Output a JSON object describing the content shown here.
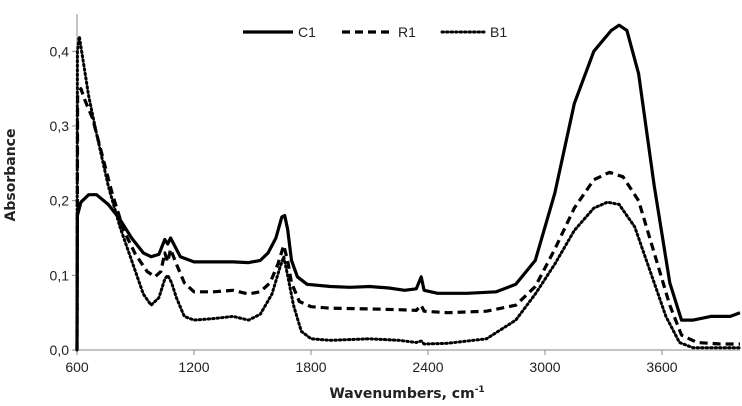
{
  "chart_data": {
    "type": "line",
    "title": "",
    "xlabel": "Wavenumbers, cm",
    "xlabel_superscript": "-1",
    "ylabel": "Absorbance",
    "xlim": [
      600,
      4000
    ],
    "ylim": [
      0,
      0.45
    ],
    "x_ticks": [
      600,
      1200,
      1800,
      2400,
      3000,
      3600
    ],
    "x_tick_labels": [
      "600",
      "1200",
      "1800",
      "2400",
      "3000",
      "3600"
    ],
    "y_ticks": [
      0,
      0.1,
      0.2,
      0.3,
      0.4
    ],
    "y_tick_labels": [
      "0,0",
      "0,1",
      "0,2",
      "0,3",
      "0,4"
    ],
    "grid": false,
    "legend_position": "top-center",
    "series": [
      {
        "name": "C1",
        "style": "solid",
        "color": "#000000",
        "points": [
          [
            600,
            0.0
          ],
          [
            602,
            0.18
          ],
          [
            620,
            0.198
          ],
          [
            660,
            0.208
          ],
          [
            700,
            0.208
          ],
          [
            760,
            0.195
          ],
          [
            820,
            0.175
          ],
          [
            880,
            0.15
          ],
          [
            940,
            0.13
          ],
          [
            980,
            0.125
          ],
          [
            1020,
            0.128
          ],
          [
            1050,
            0.148
          ],
          [
            1065,
            0.142
          ],
          [
            1080,
            0.15
          ],
          [
            1100,
            0.14
          ],
          [
            1130,
            0.125
          ],
          [
            1200,
            0.118
          ],
          [
            1300,
            0.118
          ],
          [
            1400,
            0.118
          ],
          [
            1480,
            0.117
          ],
          [
            1540,
            0.12
          ],
          [
            1580,
            0.13
          ],
          [
            1620,
            0.15
          ],
          [
            1650,
            0.178
          ],
          [
            1665,
            0.18
          ],
          [
            1680,
            0.162
          ],
          [
            1700,
            0.12
          ],
          [
            1730,
            0.098
          ],
          [
            1780,
            0.088
          ],
          [
            1900,
            0.085
          ],
          [
            2000,
            0.084
          ],
          [
            2100,
            0.085
          ],
          [
            2200,
            0.083
          ],
          [
            2280,
            0.08
          ],
          [
            2340,
            0.082
          ],
          [
            2365,
            0.098
          ],
          [
            2380,
            0.08
          ],
          [
            2450,
            0.076
          ],
          [
            2600,
            0.076
          ],
          [
            2750,
            0.078
          ],
          [
            2850,
            0.088
          ],
          [
            2950,
            0.12
          ],
          [
            3050,
            0.21
          ],
          [
            3150,
            0.33
          ],
          [
            3250,
            0.4
          ],
          [
            3340,
            0.428
          ],
          [
            3380,
            0.435
          ],
          [
            3420,
            0.428
          ],
          [
            3480,
            0.37
          ],
          [
            3560,
            0.22
          ],
          [
            3640,
            0.09
          ],
          [
            3700,
            0.04
          ],
          [
            3760,
            0.04
          ],
          [
            3850,
            0.045
          ],
          [
            3950,
            0.045
          ],
          [
            4000,
            0.05
          ]
        ]
      },
      {
        "name": "R1",
        "style": "dashed",
        "color": "#000000",
        "points": [
          [
            600,
            0.0
          ],
          [
            603,
            0.34
          ],
          [
            620,
            0.35
          ],
          [
            640,
            0.335
          ],
          [
            680,
            0.31
          ],
          [
            720,
            0.27
          ],
          [
            780,
            0.21
          ],
          [
            840,
            0.16
          ],
          [
            900,
            0.128
          ],
          [
            960,
            0.105
          ],
          [
            1000,
            0.098
          ],
          [
            1030,
            0.105
          ],
          [
            1050,
            0.13
          ],
          [
            1065,
            0.118
          ],
          [
            1080,
            0.135
          ],
          [
            1110,
            0.115
          ],
          [
            1150,
            0.09
          ],
          [
            1200,
            0.078
          ],
          [
            1300,
            0.078
          ],
          [
            1400,
            0.08
          ],
          [
            1480,
            0.075
          ],
          [
            1540,
            0.078
          ],
          [
            1590,
            0.09
          ],
          [
            1630,
            0.115
          ],
          [
            1660,
            0.14
          ],
          [
            1680,
            0.12
          ],
          [
            1700,
            0.09
          ],
          [
            1740,
            0.065
          ],
          [
            1800,
            0.058
          ],
          [
            1900,
            0.056
          ],
          [
            2100,
            0.055
          ],
          [
            2250,
            0.054
          ],
          [
            2340,
            0.053
          ],
          [
            2365,
            0.06
          ],
          [
            2380,
            0.052
          ],
          [
            2500,
            0.05
          ],
          [
            2700,
            0.052
          ],
          [
            2850,
            0.06
          ],
          [
            2950,
            0.085
          ],
          [
            3050,
            0.135
          ],
          [
            3150,
            0.19
          ],
          [
            3250,
            0.228
          ],
          [
            3330,
            0.238
          ],
          [
            3400,
            0.232
          ],
          [
            3480,
            0.2
          ],
          [
            3560,
            0.13
          ],
          [
            3640,
            0.06
          ],
          [
            3700,
            0.02
          ],
          [
            3780,
            0.01
          ],
          [
            3900,
            0.008
          ],
          [
            4000,
            0.008
          ]
        ]
      },
      {
        "name": "B1",
        "style": "dotted",
        "color": "#000000",
        "points": [
          [
            600,
            0.0
          ],
          [
            602,
            0.4
          ],
          [
            612,
            0.42
          ],
          [
            625,
            0.398
          ],
          [
            660,
            0.34
          ],
          [
            700,
            0.29
          ],
          [
            760,
            0.22
          ],
          [
            820,
            0.165
          ],
          [
            880,
            0.12
          ],
          [
            940,
            0.075
          ],
          [
            980,
            0.06
          ],
          [
            1020,
            0.07
          ],
          [
            1050,
            0.095
          ],
          [
            1065,
            0.1
          ],
          [
            1085,
            0.09
          ],
          [
            1110,
            0.07
          ],
          [
            1150,
            0.045
          ],
          [
            1200,
            0.04
          ],
          [
            1300,
            0.042
          ],
          [
            1400,
            0.045
          ],
          [
            1480,
            0.04
          ],
          [
            1540,
            0.048
          ],
          [
            1600,
            0.075
          ],
          [
            1640,
            0.11
          ],
          [
            1660,
            0.125
          ],
          [
            1680,
            0.1
          ],
          [
            1710,
            0.06
          ],
          [
            1750,
            0.025
          ],
          [
            1800,
            0.015
          ],
          [
            1900,
            0.013
          ],
          [
            2100,
            0.015
          ],
          [
            2250,
            0.013
          ],
          [
            2340,
            0.01
          ],
          [
            2365,
            0.012
          ],
          [
            2380,
            0.008
          ],
          [
            2500,
            0.009
          ],
          [
            2700,
            0.015
          ],
          [
            2850,
            0.04
          ],
          [
            2950,
            0.075
          ],
          [
            3050,
            0.115
          ],
          [
            3150,
            0.16
          ],
          [
            3250,
            0.19
          ],
          [
            3320,
            0.198
          ],
          [
            3380,
            0.195
          ],
          [
            3460,
            0.165
          ],
          [
            3540,
            0.105
          ],
          [
            3620,
            0.045
          ],
          [
            3690,
            0.01
          ],
          [
            3760,
            0.003
          ],
          [
            3900,
            0.003
          ],
          [
            4000,
            0.003
          ]
        ]
      }
    ]
  }
}
